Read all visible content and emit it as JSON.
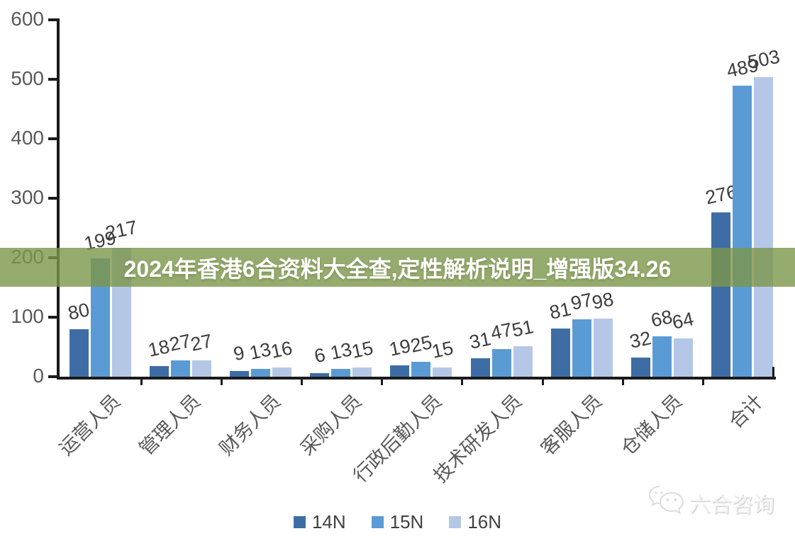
{
  "banner": {
    "text": "2024年香港6合资料大全查,定性解析说明_增强版34.26",
    "background": "#7C964A"
  },
  "watermark": {
    "label": "六合咨询",
    "icon": "wechat-icon"
  },
  "chart_data": {
    "type": "bar",
    "title": "",
    "xlabel": "",
    "ylabel": "",
    "categories": [
      "运营人员",
      "管理人员",
      "财务人员",
      "采购人员",
      "行政后勤人员",
      "技术研发人员",
      "客服人员",
      "仓储人员",
      "合计"
    ],
    "series": [
      {
        "name": "14N",
        "color": "#3D6DA4",
        "values": [
          80,
          18,
          9,
          6,
          19,
          31,
          81,
          32,
          276
        ]
      },
      {
        "name": "15N",
        "color": "#5B9BD5",
        "values": [
          199,
          27,
          13,
          13,
          25,
          47,
          97,
          68,
          489
        ]
      },
      {
        "name": "16N",
        "color": "#B4C7E7",
        "values": [
          217,
          27,
          16,
          15,
          15,
          51,
          98,
          64,
          503
        ]
      }
    ],
    "ylim": [
      0,
      600
    ],
    "yticks": [
      0,
      100,
      200,
      300,
      400,
      500,
      600
    ],
    "grid": false,
    "legend_position": "bottom",
    "axis_color": "#1a1a1a",
    "value_label_color": "#3d3d3d",
    "tick_label_color": "#595959"
  }
}
